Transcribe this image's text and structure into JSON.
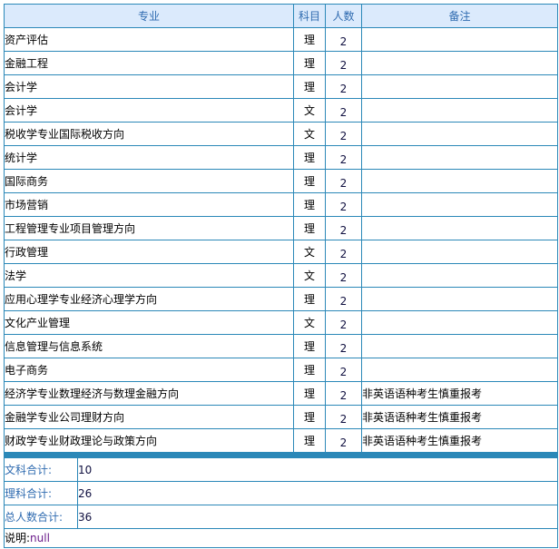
{
  "headers": {
    "major": "专业",
    "subject": "科目",
    "count": "人数",
    "remark": "备注"
  },
  "rows": [
    {
      "major": "资产评估",
      "subject": "理",
      "count": "2",
      "remark": ""
    },
    {
      "major": "金融工程",
      "subject": "理",
      "count": "2",
      "remark": ""
    },
    {
      "major": "会计学",
      "subject": "理",
      "count": "2",
      "remark": ""
    },
    {
      "major": "会计学",
      "subject": "文",
      "count": "2",
      "remark": ""
    },
    {
      "major": "税收学专业国际税收方向",
      "subject": "文",
      "count": "2",
      "remark": ""
    },
    {
      "major": "统计学",
      "subject": "理",
      "count": "2",
      "remark": ""
    },
    {
      "major": "国际商务",
      "subject": "理",
      "count": "2",
      "remark": ""
    },
    {
      "major": "市场营销",
      "subject": "理",
      "count": "2",
      "remark": ""
    },
    {
      "major": "工程管理专业项目管理方向",
      "subject": "理",
      "count": "2",
      "remark": ""
    },
    {
      "major": "行政管理",
      "subject": "文",
      "count": "2",
      "remark": ""
    },
    {
      "major": "法学",
      "subject": "文",
      "count": "2",
      "remark": ""
    },
    {
      "major": "应用心理学专业经济心理学方向",
      "subject": "理",
      "count": "2",
      "remark": ""
    },
    {
      "major": "文化产业管理",
      "subject": "文",
      "count": "2",
      "remark": ""
    },
    {
      "major": "信息管理与信息系统",
      "subject": "理",
      "count": "2",
      "remark": ""
    },
    {
      "major": "电子商务",
      "subject": "理",
      "count": "2",
      "remark": ""
    },
    {
      "major": "经济学专业数理经济与数理金融方向",
      "subject": "理",
      "count": "2",
      "remark": "非英语语种考生慎重报考"
    },
    {
      "major": "金融学专业公司理财方向",
      "subject": "理",
      "count": "2",
      "remark": "非英语语种考生慎重报考"
    },
    {
      "major": "财政学专业财政理论与政策方向",
      "subject": "理",
      "count": "2",
      "remark": "非英语语种考生慎重报考"
    }
  ],
  "summary": {
    "arts_label": "文科合计:",
    "arts_value": "10",
    "science_label": "理科合计:",
    "science_value": "26",
    "total_label": "总人数合计:",
    "total_value": "36",
    "note_label": "说明:",
    "note_value": "null"
  }
}
